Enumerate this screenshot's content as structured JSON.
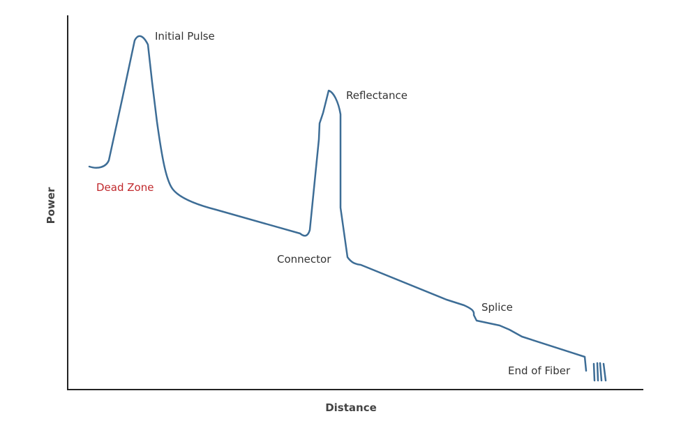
{
  "diagram": {
    "xlabel": "Distance",
    "ylabel": "Power",
    "annotations": {
      "initial_pulse": "Initial Pulse",
      "dead_zone": "Dead Zone",
      "reflectance": "Reflectance",
      "connector": "Connector",
      "splice": "Splice",
      "end_of_fiber": "End of Fiber"
    },
    "colors": {
      "trace": "#3d6d96",
      "axis": "#222222",
      "dead_zone": "#c0282c",
      "text": "#333333"
    }
  }
}
